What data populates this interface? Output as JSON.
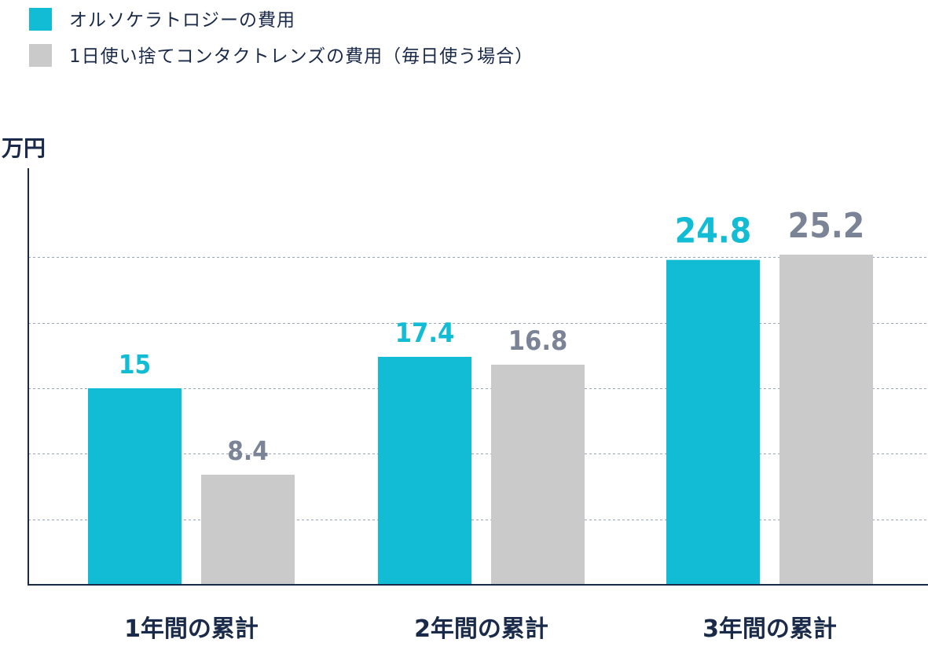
{
  "chart_data": {
    "type": "bar",
    "unit_label": "万円",
    "categories": [
      "1年間の累計",
      "2年間の累計",
      "3年間の累計"
    ],
    "series": [
      {
        "name": "オルソケラトロジーの費用",
        "values": [
          15,
          17.4,
          24.8
        ],
        "value_labels": [
          "15",
          "17.4",
          "24.8"
        ],
        "color": "#12bcd4",
        "label_color": "#12bcd4"
      },
      {
        "name": "1日使い捨てコンタクトレンズの費用（毎日使う場合）",
        "values": [
          8.4,
          16.8,
          25.2
        ],
        "value_labels": [
          "8.4",
          "16.8",
          "25.2"
        ],
        "color": "#cacaca",
        "label_color": "#7b8396"
      }
    ],
    "ylim": [
      0,
      30
    ],
    "y_gridlines": [
      5,
      10,
      15,
      20,
      25
    ],
    "grid": true,
    "legend_position": "top-left"
  }
}
